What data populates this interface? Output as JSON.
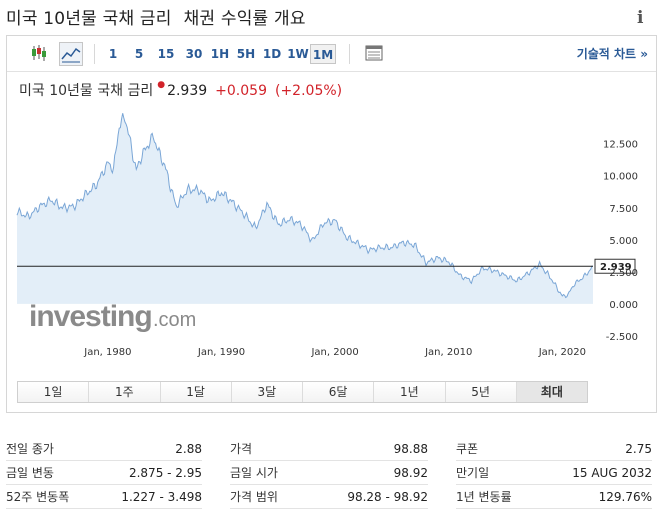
{
  "header": {
    "title": "미국 10년물 국채 금리",
    "subtitle": "채권 수익률 개요"
  },
  "toolbar": {
    "candle_icon": "candlestick-icon",
    "area_icon": "area-chart-icon",
    "intervals": [
      "1",
      "5",
      "15",
      "30",
      "1H",
      "5H",
      "1D",
      "1W",
      "1M"
    ],
    "active_interval": "1M",
    "table_icon": "table-icon",
    "technical_link": "기술적 차트 »"
  },
  "quote": {
    "name": "미국 10년물 국채 금리",
    "price": "2.939",
    "change": "+0.059",
    "change_pct": "(+2.05%)",
    "negative_color": "#d2232a"
  },
  "watermark": {
    "logo_text": "investing",
    "logo_suffix": ".com"
  },
  "chart_data": {
    "type": "area",
    "x": [
      1972,
      1973,
      1974,
      1975,
      1976,
      1977,
      1978,
      1979,
      1980,
      1980.5,
      1981,
      1981.5,
      1982,
      1982.5,
      1983,
      1984,
      1984.5,
      1985,
      1986,
      1987,
      1988,
      1989,
      1990,
      1991,
      1992,
      1993,
      1994,
      1995,
      1996,
      1997,
      1998,
      1999,
      2000,
      2001,
      2002,
      2003,
      2004,
      2005,
      2006,
      2007,
      2008,
      2009,
      2010,
      2011,
      2012,
      2013,
      2014,
      2015,
      2016,
      2017,
      2018,
      2019,
      2020,
      2020.5,
      2021,
      2022,
      2022.7
    ],
    "values": [
      7.2,
      6.8,
      7.6,
      8.1,
      7.5,
      7.6,
      8.5,
      9.3,
      11.0,
      10.5,
      13.9,
      14.6,
      12.5,
      10.4,
      11.6,
      13.1,
      11.8,
      10.8,
      7.6,
      8.9,
      8.9,
      8.0,
      8.7,
      7.9,
      7.0,
      5.9,
      7.8,
      6.2,
      6.6,
      6.2,
      4.9,
      6.3,
      6.5,
      5.2,
      4.7,
      4.2,
      4.4,
      4.4,
      4.8,
      4.6,
      3.2,
      3.6,
      3.3,
      2.2,
      1.8,
      2.8,
      2.6,
      2.2,
      1.8,
      2.4,
      3.1,
      2.0,
      0.6,
      0.7,
      1.5,
      2.2,
      2.939
    ],
    "xlim": [
      1972,
      2022.7
    ],
    "ylim": [
      -2.5,
      15.2
    ],
    "y_ticks": [
      "-2.500",
      "0.000",
      "2.500",
      "5.000",
      "7.500",
      "10.000",
      "12.500"
    ],
    "y_tick_values": [
      -2.5,
      0,
      2.5,
      5,
      7.5,
      10,
      12.5
    ],
    "x_ticks": [
      "Jan, 1980",
      "Jan, 1990",
      "Jan, 2000",
      "Jan, 2010",
      "Jan, 2020"
    ],
    "x_tick_values": [
      1980,
      1990,
      2000,
      2010,
      2020
    ],
    "current_value": 2.939,
    "current_label": "2.939",
    "line_color": "#7aa6d6",
    "fill_color": "#e3eef8",
    "grid": false
  },
  "ranges": [
    "1일",
    "1주",
    "1달",
    "3달",
    "6달",
    "1년",
    "5년",
    "최대"
  ],
  "active_range": "최대",
  "stats": {
    "col1": [
      {
        "label": "전일 종가",
        "value": "2.88"
      },
      {
        "label": "금일 변동",
        "value": "2.875 - 2.95"
      },
      {
        "label": "52주 변동폭",
        "value": "1.227 - 3.498"
      }
    ],
    "col2": [
      {
        "label": "가격",
        "value": "98.88"
      },
      {
        "label": "금일 시가",
        "value": "98.92"
      },
      {
        "label": "가격 범위",
        "value": "98.28 - 98.92"
      }
    ],
    "col3": [
      {
        "label": "쿠폰",
        "value": "2.75"
      },
      {
        "label": "만기일",
        "value": "15 AUG 2032"
      },
      {
        "label": "1년 변동률",
        "value": "129.76%"
      }
    ]
  }
}
